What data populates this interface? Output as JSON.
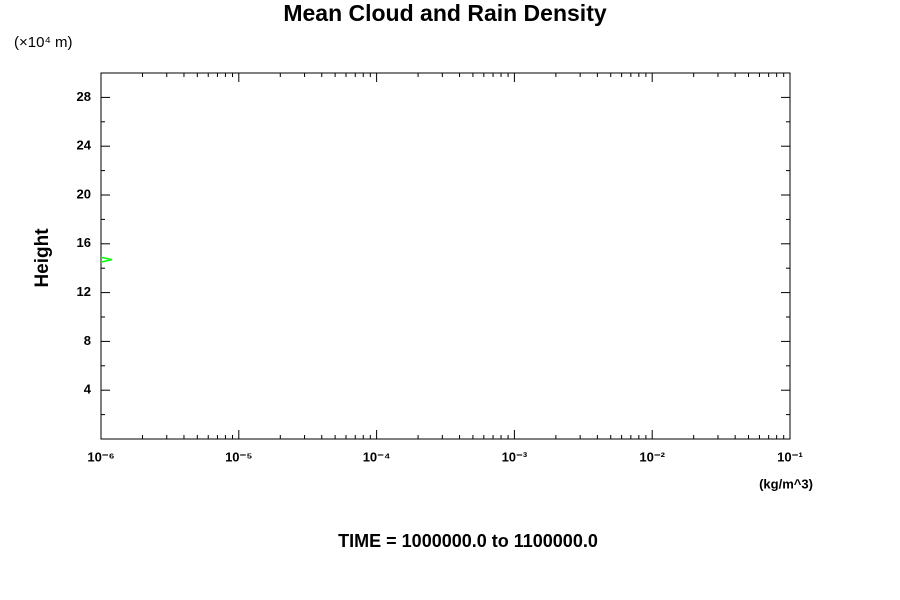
{
  "chart_data": {
    "type": "line",
    "title": "Mean Cloud and Rain Density",
    "y_unit": "(×10⁴ m)",
    "y_label": "Height",
    "x_unit": "(kg/m^3)",
    "footer": "TIME = 1000000.0 to 1100000.0",
    "x_log": true,
    "xlim": [
      1e-06,
      0.1
    ],
    "xticks": [
      {
        "value": 1e-06,
        "label": "10⁻⁶"
      },
      {
        "value": 1e-05,
        "label": "10⁻⁵"
      },
      {
        "value": 0.0001,
        "label": "10⁻⁴"
      },
      {
        "value": 0.001,
        "label": "10⁻³"
      },
      {
        "value": 0.01,
        "label": "10⁻²"
      },
      {
        "value": 0.1,
        "label": "10⁻¹"
      }
    ],
    "ylim": [
      0,
      30
    ],
    "yticks": [
      4,
      8,
      12,
      16,
      20,
      24,
      28
    ],
    "series": [
      {
        "color": "#00ff00",
        "x": [
          1e-06,
          1.2e-06,
          1e-06
        ],
        "values": [
          14.9,
          14.7,
          14.5
        ]
      }
    ]
  }
}
